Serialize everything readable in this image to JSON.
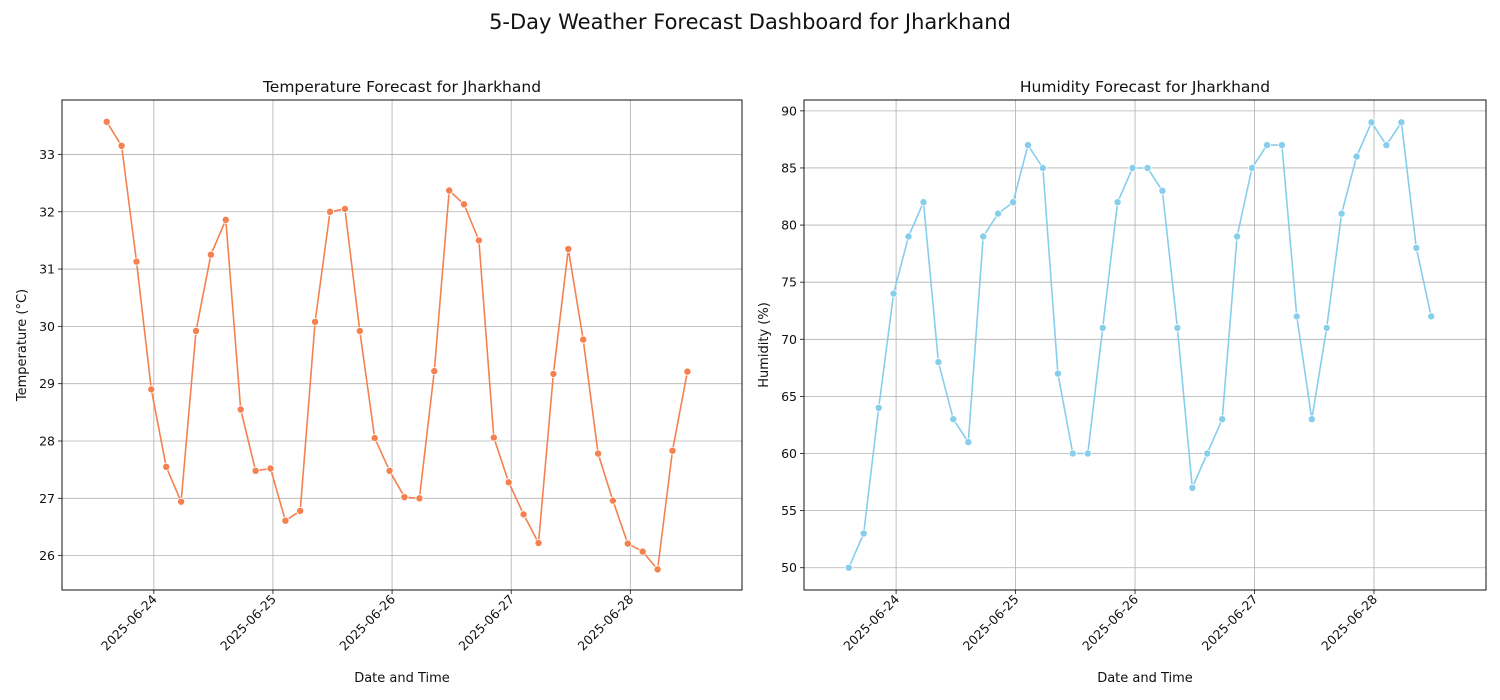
{
  "figure": {
    "title": "5-Day Weather Forecast Dashboard for Jharkhand"
  },
  "chart_data": [
    {
      "type": "line",
      "title": "Temperature Forecast for Jharkhand",
      "xlabel": "Date and Time",
      "ylabel": "Temperature (°C)",
      "x_tick_labels": [
        "2025-06-24",
        "2025-06-25",
        "2025-06-26",
        "2025-06-27",
        "2025-06-28"
      ],
      "y_ticks": [
        26,
        27,
        28,
        29,
        30,
        31,
        32,
        33
      ],
      "ylim": [
        25.4,
        33.95
      ],
      "xlim": [
        "2025-06-23 05:30",
        "2025-06-28 22:30"
      ],
      "grid": true,
      "marker": "circle",
      "color": "#f4814f",
      "series": [
        {
          "x": [
            "2025-06-23 14:30",
            "2025-06-23 17:30",
            "2025-06-23 20:30",
            "2025-06-23 23:30",
            "2025-06-24 02:30",
            "2025-06-24 05:30",
            "2025-06-24 08:30",
            "2025-06-24 11:30",
            "2025-06-24 14:30",
            "2025-06-24 17:30",
            "2025-06-24 20:30",
            "2025-06-24 23:30",
            "2025-06-25 02:30",
            "2025-06-25 05:30",
            "2025-06-25 08:30",
            "2025-06-25 11:30",
            "2025-06-25 14:30",
            "2025-06-25 17:30",
            "2025-06-25 20:30",
            "2025-06-25 23:30",
            "2025-06-26 02:30",
            "2025-06-26 05:30",
            "2025-06-26 08:30",
            "2025-06-26 11:30",
            "2025-06-26 14:30",
            "2025-06-26 17:30",
            "2025-06-26 20:30",
            "2025-06-26 23:30",
            "2025-06-27 02:30",
            "2025-06-27 05:30",
            "2025-06-27 08:30",
            "2025-06-27 11:30",
            "2025-06-27 14:30",
            "2025-06-27 17:30",
            "2025-06-27 20:30",
            "2025-06-27 23:30",
            "2025-06-28 02:30",
            "2025-06-28 05:30",
            "2025-06-28 08:30",
            "2025-06-28 11:30"
          ],
          "values": [
            33.57,
            33.15,
            31.13,
            28.9,
            27.55,
            26.94,
            29.92,
            31.25,
            31.86,
            28.55,
            27.48,
            27.52,
            26.61,
            26.78,
            30.08,
            32.0,
            32.05,
            29.92,
            28.05,
            27.48,
            27.02,
            27.0,
            29.22,
            32.37,
            32.13,
            31.5,
            28.06,
            27.28,
            26.72,
            26.22,
            29.17,
            31.35,
            29.77,
            27.78,
            26.96,
            26.21,
            26.07,
            25.76,
            27.83,
            29.21
          ]
        }
      ]
    },
    {
      "type": "line",
      "title": "Humidity Forecast for Jharkhand",
      "xlabel": "Date and Time",
      "ylabel": "Humidity (%)",
      "x_tick_labels": [
        "2025-06-24",
        "2025-06-25",
        "2025-06-26",
        "2025-06-27",
        "2025-06-28"
      ],
      "y_ticks": [
        50,
        55,
        60,
        65,
        70,
        75,
        80,
        85,
        90
      ],
      "ylim": [
        48.05,
        90.95
      ],
      "xlim": [
        "2025-06-23 05:30",
        "2025-06-28 22:30"
      ],
      "grid": true,
      "marker": "circle",
      "color": "#87ceeb",
      "series": [
        {
          "x": [
            "2025-06-23 14:30",
            "2025-06-23 17:30",
            "2025-06-23 20:30",
            "2025-06-23 23:30",
            "2025-06-24 02:30",
            "2025-06-24 05:30",
            "2025-06-24 08:30",
            "2025-06-24 11:30",
            "2025-06-24 14:30",
            "2025-06-24 17:30",
            "2025-06-24 20:30",
            "2025-06-24 23:30",
            "2025-06-25 02:30",
            "2025-06-25 05:30",
            "2025-06-25 08:30",
            "2025-06-25 11:30",
            "2025-06-25 14:30",
            "2025-06-25 17:30",
            "2025-06-25 20:30",
            "2025-06-25 23:30",
            "2025-06-26 02:30",
            "2025-06-26 05:30",
            "2025-06-26 08:30",
            "2025-06-26 11:30",
            "2025-06-26 14:30",
            "2025-06-26 17:30",
            "2025-06-26 20:30",
            "2025-06-26 23:30",
            "2025-06-27 02:30",
            "2025-06-27 05:30",
            "2025-06-27 08:30",
            "2025-06-27 11:30",
            "2025-06-27 14:30",
            "2025-06-27 17:30",
            "2025-06-27 20:30",
            "2025-06-27 23:30",
            "2025-06-28 02:30",
            "2025-06-28 05:30",
            "2025-06-28 08:30",
            "2025-06-28 11:30"
          ],
          "values": [
            50,
            53,
            64,
            74,
            79,
            82,
            68,
            63,
            61,
            79,
            81,
            82,
            87,
            85,
            67,
            60,
            60,
            71,
            82,
            85,
            85,
            83,
            71,
            57,
            60,
            63,
            79,
            85,
            87,
            87,
            72,
            63,
            71,
            81,
            86,
            89,
            87,
            89,
            78,
            72
          ]
        }
      ]
    }
  ]
}
